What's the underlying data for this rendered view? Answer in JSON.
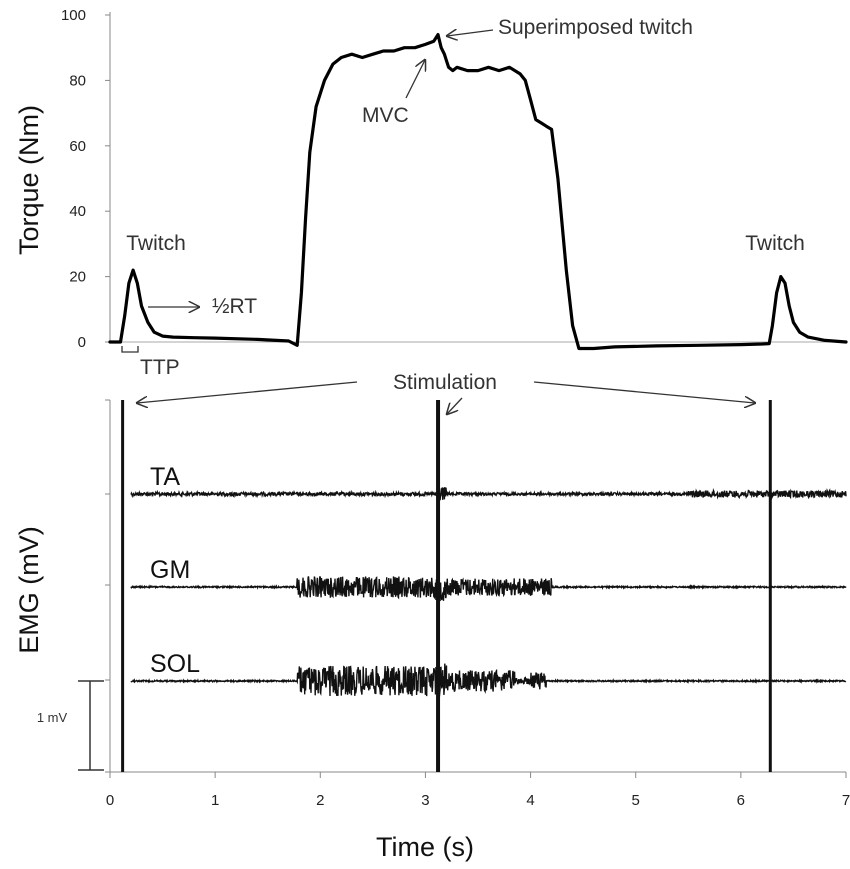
{
  "chart_data": {
    "type": "line",
    "x_axis": {
      "label": "Time (s)",
      "range": [
        0,
        7
      ],
      "ticks": [
        "0",
        "1",
        "2",
        "3",
        "4",
        "5",
        "6",
        "7"
      ]
    },
    "torque": {
      "ylabel": "Torque (Nm)",
      "ylim": [
        0,
        100
      ],
      "yticks": [
        "0",
        "20",
        "40",
        "60",
        "80",
        "100"
      ],
      "series": {
        "x": [
          0.0,
          0.1,
          0.14,
          0.18,
          0.22,
          0.26,
          0.3,
          0.36,
          0.42,
          0.5,
          0.6,
          0.8,
          1.0,
          1.4,
          1.7,
          1.78,
          1.82,
          1.86,
          1.9,
          1.96,
          2.04,
          2.12,
          2.2,
          2.3,
          2.4,
          2.5,
          2.6,
          2.7,
          2.8,
          2.9,
          3.0,
          3.08,
          3.12,
          3.15,
          3.18,
          3.2,
          3.22,
          3.26,
          3.3,
          3.4,
          3.5,
          3.6,
          3.7,
          3.8,
          3.9,
          3.95,
          4.0,
          4.05,
          4.1,
          4.15,
          4.2,
          4.26,
          4.34,
          4.4,
          4.46,
          4.52,
          4.6,
          4.8,
          5.2,
          5.6,
          6.0,
          6.2,
          6.27,
          6.3,
          6.34,
          6.38,
          6.42,
          6.46,
          6.5,
          6.56,
          6.64,
          6.8,
          7.0
        ],
        "y": [
          0,
          0,
          8,
          18,
          22,
          18,
          11,
          6,
          3,
          1.8,
          1.5,
          1.3,
          1.2,
          0.8,
          0.3,
          -1,
          15,
          38,
          58,
          72,
          80,
          85,
          87,
          88,
          87,
          88,
          89,
          89,
          90,
          90,
          91,
          92,
          94,
          90,
          88,
          86,
          84,
          83,
          84,
          83,
          83,
          84,
          83,
          84,
          82,
          80,
          74,
          68,
          67,
          66,
          65,
          50,
          22,
          5,
          -2,
          -2,
          -2,
          -1.5,
          -1.2,
          -1,
          -0.8,
          -0.6,
          -0.5,
          5,
          15,
          20,
          18,
          11,
          6,
          3,
          1.5,
          0.5,
          0
        ]
      }
    },
    "emg": {
      "ylabel": "EMG (mV)",
      "scale_bar_label": "1 mV",
      "stimulation_times": [
        0.12,
        3.12,
        6.28
      ],
      "channels": [
        {
          "name": "TA",
          "bursts": [
            [
              0.2,
              3.1,
              0.02
            ],
            [
              3.1,
              3.2,
              0.08
            ],
            [
              3.2,
              5.5,
              0.015
            ],
            [
              5.5,
              7.0,
              0.04
            ]
          ]
        },
        {
          "name": "GM",
          "bursts": [
            [
              0.2,
              1.78,
              0.008
            ],
            [
              1.78,
              3.1,
              0.12
            ],
            [
              3.1,
              3.2,
              0.16
            ],
            [
              3.2,
              4.2,
              0.1
            ],
            [
              4.2,
              7.0,
              0.008
            ]
          ]
        },
        {
          "name": "SOL",
          "bursts": [
            [
              0.2,
              1.78,
              0.008
            ],
            [
              1.78,
              3.1,
              0.17
            ],
            [
              3.1,
              3.2,
              0.2
            ],
            [
              3.2,
              3.85,
              0.12
            ],
            [
              3.85,
              4.0,
              0.04
            ],
            [
              4.0,
              4.15,
              0.1
            ],
            [
              4.15,
              7.0,
              0.008
            ]
          ]
        }
      ]
    },
    "annotations": {
      "twitch_left": "Twitch",
      "twitch_right": "Twitch",
      "half_rt": "½RT",
      "ttp": "TTP",
      "mvc": "MVC",
      "superimposed": "Superimposed twitch",
      "stimulation": "Stimulation"
    }
  }
}
